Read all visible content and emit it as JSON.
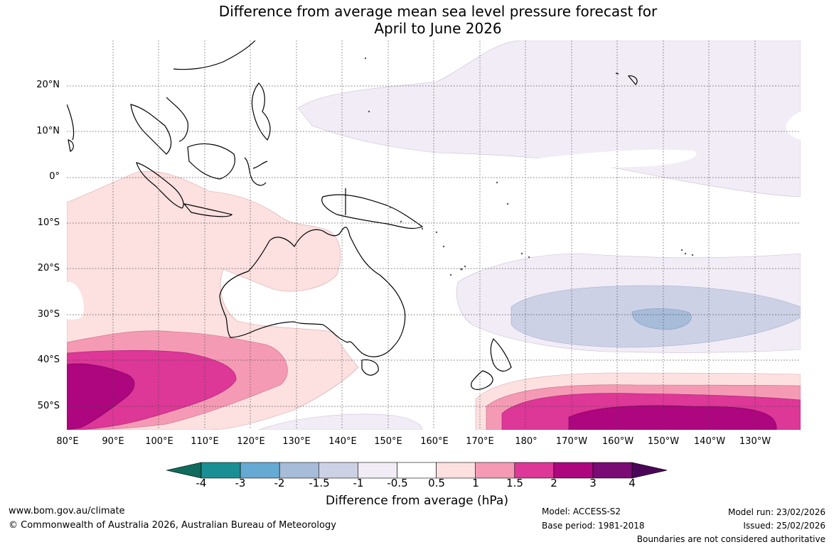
{
  "title": {
    "line1": "Difference from average mean sea level pressure forecast for",
    "line2": "April to June 2026"
  },
  "axes": {
    "lat_labels": [
      "20°N",
      "10°N",
      "0°",
      "10°S",
      "20°S",
      "30°S",
      "40°S",
      "50°S"
    ],
    "lon_labels": [
      "80°E",
      "90°E",
      "100°E",
      "110°E",
      "120°E",
      "130°E",
      "140°E",
      "150°E",
      "160°E",
      "170°E",
      "180°",
      "170°W",
      "160°W",
      "150°W",
      "140°W",
      "130°W"
    ]
  },
  "colorbar": {
    "ticks": [
      "-4",
      "-3",
      "-2",
      "-1.5",
      "-1",
      "-0.5",
      "0.5",
      "1",
      "1.5",
      "2",
      "3",
      "4"
    ],
    "label": "Difference from average (hPa)",
    "colors": [
      "#0e6b5d",
      "#1a8f93",
      "#65aad3",
      "#a6bcd9",
      "#cdd1e6",
      "#f2ecf6",
      "#ffffff",
      "#fde0e0",
      "#f59ab4",
      "#dd3797",
      "#ad067f",
      "#7a0a74",
      "#4a0558"
    ]
  },
  "map": {
    "land_outline_color": "#000000",
    "grid_color": "#444444"
  },
  "footer": {
    "website": "www.bom.gov.au/climate",
    "copyright": "© Commonwealth of Australia 2026, Australian Bureau of Meteorology",
    "model": "Model: ACCESS-S2",
    "base_period": "Base period: 1981-2018",
    "model_run": "Model run: 23/02/2026",
    "issued": "Issued: 25/02/2026",
    "disclaimer": "Boundaries are not considered authoritative"
  }
}
